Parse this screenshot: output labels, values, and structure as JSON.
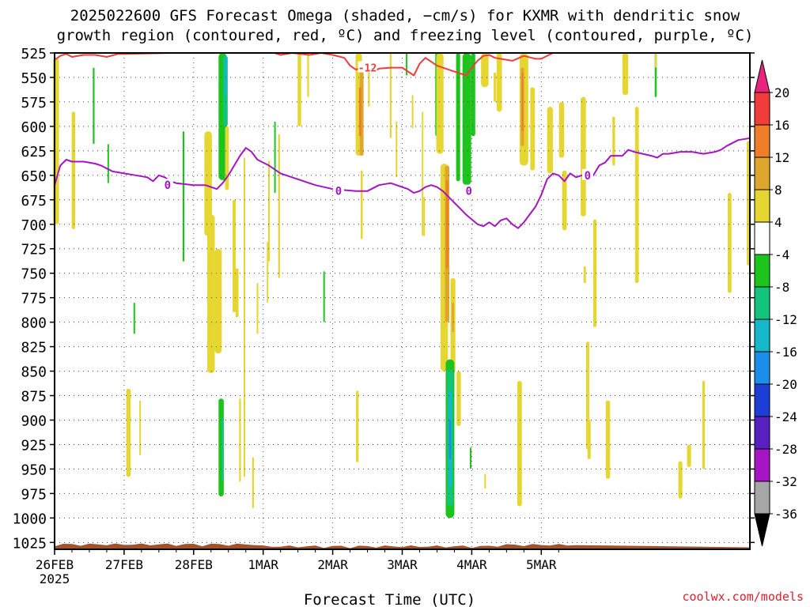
{
  "title": {
    "line1": "2025022600 GFS Forecast Omega (shaded, −cm/s) for KXMR with dendritic snow",
    "line2": "growth region (contoured, red, ºC) and freezing level (contoured, purple, ºC)"
  },
  "credit": "coolwx.com/models",
  "chart_data": {
    "type": "heatmap",
    "xlabel": "Forecast Time (UTC)",
    "ylabel": "",
    "x_ticks": [
      "26FEB",
      "27FEB",
      "28FEB",
      "1MAR",
      "2MAR",
      "3MAR",
      "4MAR",
      "5MAR"
    ],
    "x_sublabel": "2025",
    "xlim_hours": [
      0,
      180
    ],
    "y_ticks": [
      525,
      550,
      575,
      600,
      625,
      650,
      675,
      700,
      725,
      750,
      775,
      800,
      825,
      850,
      875,
      900,
      925,
      950,
      975,
      1000,
      1025
    ],
    "ylim_hPa": [
      525,
      1032
    ],
    "grid": true,
    "colorbar": {
      "labels": [
        20,
        16,
        12,
        8,
        4,
        -4,
        -8,
        -12,
        -16,
        -20,
        -24,
        -28,
        -32,
        -36
      ],
      "colors": [
        "#e8247c",
        "#f23c3c",
        "#ef7e2a",
        "#dfa62e",
        "#e6d631",
        "#ffffff",
        "#1ec41e",
        "#13c47e",
        "#14b8c8",
        "#1a8ee8",
        "#1c3ed6",
        "#5a1fc0",
        "#a614c4",
        "#a6a6a6",
        "#000000"
      ]
    },
    "colors": {
      "yellow": "#e6d631",
      "gold": "#dfa62e",
      "orange": "#ef7e2a",
      "green": "#1ec41e",
      "teal": "#13c47e",
      "cyan": "#14b8c8",
      "blue": "#1a8ee8",
      "freezing": "#a614c4",
      "dgz": "#f23c3c",
      "terrain": "#a0522d"
    },
    "freezing_level": {
      "label": "0",
      "points": [
        [
          0,
          660
        ],
        [
          2,
          640
        ],
        [
          4,
          634
        ],
        [
          6,
          636
        ],
        [
          10,
          636
        ],
        [
          14,
          638
        ],
        [
          16,
          640
        ],
        [
          20,
          646
        ],
        [
          24,
          648
        ],
        [
          28,
          650
        ],
        [
          32,
          652
        ],
        [
          34,
          656
        ],
        [
          36,
          650
        ],
        [
          38,
          652
        ],
        [
          40,
          656
        ],
        [
          42,
          658
        ],
        [
          48,
          660
        ],
        [
          52,
          660
        ],
        [
          54,
          662
        ],
        [
          56,
          664
        ],
        [
          58,
          658
        ],
        [
          60,
          650
        ],
        [
          62,
          640
        ],
        [
          64,
          630
        ],
        [
          66,
          622
        ],
        [
          68,
          626
        ],
        [
          70,
          634
        ],
        [
          74,
          640
        ],
        [
          78,
          648
        ],
        [
          84,
          654
        ],
        [
          90,
          660
        ],
        [
          96,
          664
        ],
        [
          104,
          666
        ],
        [
          108,
          666
        ],
        [
          112,
          660
        ],
        [
          116,
          658
        ],
        [
          120,
          662
        ],
        [
          122,
          664
        ],
        [
          124,
          668
        ],
        [
          126,
          666
        ],
        [
          128,
          662
        ],
        [
          130,
          660
        ],
        [
          132,
          662
        ],
        [
          134,
          666
        ],
        [
          136,
          672
        ],
        [
          138,
          678
        ],
        [
          140,
          684
        ],
        [
          142,
          690
        ],
        [
          144,
          695
        ],
        [
          146,
          700
        ],
        [
          148,
          702
        ],
        [
          150,
          698
        ],
        [
          152,
          702
        ],
        [
          154,
          696
        ],
        [
          156,
          694
        ],
        [
          158,
          700
        ],
        [
          160,
          704
        ],
        [
          162,
          698
        ],
        [
          164,
          690
        ],
        [
          166,
          682
        ],
        [
          168,
          670
        ],
        [
          170,
          654
        ],
        [
          172,
          648
        ],
        [
          174,
          650
        ],
        [
          176,
          656
        ],
        [
          178,
          648
        ],
        [
          180,
          652
        ],
        [
          182,
          650
        ],
        [
          184,
          654
        ],
        [
          186,
          650
        ],
        [
          188,
          640
        ],
        [
          190,
          637
        ],
        [
          192,
          630
        ],
        [
          196,
          630
        ],
        [
          198,
          624
        ],
        [
          200,
          626
        ],
        [
          206,
          630
        ],
        [
          208,
          632
        ],
        [
          210,
          628
        ],
        [
          212,
          628
        ],
        [
          216,
          626
        ],
        [
          220,
          626
        ],
        [
          224,
          628
        ],
        [
          228,
          626
        ],
        [
          230,
          624
        ],
        [
          232,
          620
        ],
        [
          236,
          614
        ],
        [
          240,
          612
        ]
      ]
    },
    "dgz_contour": {
      "label": "-12",
      "points": [
        [
          0,
          532
        ],
        [
          2,
          528
        ],
        [
          4,
          526
        ],
        [
          6,
          529
        ],
        [
          10,
          527
        ],
        [
          14,
          527
        ],
        [
          18,
          529
        ],
        [
          22,
          526
        ],
        [
          24,
          526
        ],
        [
          40,
          525
        ],
        [
          76,
          525
        ],
        [
          78,
          527
        ],
        [
          82,
          525
        ],
        [
          88,
          527
        ],
        [
          92,
          525
        ],
        [
          96,
          527
        ],
        [
          100,
          530
        ],
        [
          102,
          538
        ],
        [
          104,
          542
        ],
        [
          106,
          540
        ],
        [
          110,
          544
        ],
        [
          112,
          541
        ],
        [
          116,
          540
        ],
        [
          120,
          540
        ],
        [
          124,
          548
        ],
        [
          126,
          536
        ],
        [
          128,
          530
        ],
        [
          130,
          534
        ],
        [
          132,
          538
        ],
        [
          136,
          542
        ],
        [
          140,
          546
        ],
        [
          142,
          548
        ],
        [
          144,
          540
        ],
        [
          146,
          533
        ],
        [
          148,
          528
        ],
        [
          150,
          527
        ],
        [
          152,
          530
        ],
        [
          158,
          533
        ],
        [
          162,
          528
        ],
        [
          166,
          531
        ],
        [
          168,
          531
        ],
        [
          172,
          525
        ]
      ]
    },
    "blobs": [
      {
        "t": 0.5,
        "p0": 530,
        "p1": 700,
        "w": 2,
        "c": "yellow"
      },
      {
        "t": 6.5,
        "p0": 585,
        "p1": 705,
        "w": 1.2,
        "c": "yellow"
      },
      {
        "t": 13.5,
        "p0": 540,
        "p1": 618,
        "w": 0.6,
        "c": "green"
      },
      {
        "t": 18.5,
        "p0": 618,
        "p1": 658,
        "w": 0.5,
        "c": "green"
      },
      {
        "t": 27.5,
        "p0": 780,
        "p1": 812,
        "w": 0.5,
        "c": "green"
      },
      {
        "t": 25.5,
        "p0": 868,
        "p1": 958,
        "w": 1.5,
        "c": "yellow"
      },
      {
        "t": 29.5,
        "p0": 880,
        "p1": 936,
        "w": 0.5,
        "c": "yellow"
      },
      {
        "t": 44.5,
        "p0": 605,
        "p1": 738,
        "w": 0.6,
        "c": "green"
      },
      {
        "t": 53,
        "p0": 605,
        "p1": 712,
        "w": 2.6,
        "c": "yellow"
      },
      {
        "t": 54,
        "p0": 690,
        "p1": 852,
        "w": 2.6,
        "c": "yellow"
      },
      {
        "t": 56.5,
        "p0": 725,
        "p1": 832,
        "w": 2.4,
        "c": "yellow"
      },
      {
        "t": 58,
        "p0": 525,
        "p1": 655,
        "w": 2.8,
        "c": "green"
      },
      {
        "t": 59,
        "p0": 528,
        "p1": 600,
        "w": 1.5,
        "c": "teal"
      },
      {
        "t": 59,
        "p0": 528,
        "p1": 568,
        "w": 1,
        "c": "cyan"
      },
      {
        "t": 59.5,
        "p0": 600,
        "p1": 665,
        "w": 1.3,
        "c": "yellow"
      },
      {
        "t": 62,
        "p0": 675,
        "p1": 790,
        "w": 1.1,
        "c": "yellow"
      },
      {
        "t": 63,
        "p0": 745,
        "p1": 795,
        "w": 1,
        "c": "yellow"
      },
      {
        "t": 57.5,
        "p0": 878,
        "p1": 978,
        "w": 1.8,
        "c": "green"
      },
      {
        "t": 58,
        "p0": 898,
        "p1": 962,
        "w": 0.7,
        "c": "teal"
      },
      {
        "t": 64,
        "p0": 878,
        "p1": 963,
        "w": 0.6,
        "c": "yellow"
      },
      {
        "t": 65.5,
        "p0": 632,
        "p1": 958,
        "w": 0.5,
        "c": "yellow"
      },
      {
        "t": 68.5,
        "p0": 938,
        "p1": 990,
        "w": 0.6,
        "c": "yellow"
      },
      {
        "t": 70,
        "p0": 760,
        "p1": 812,
        "w": 0.5,
        "c": "yellow"
      },
      {
        "t": 73.5,
        "p0": 718,
        "p1": 780,
        "w": 0.5,
        "c": "yellow"
      },
      {
        "t": 74,
        "p0": 635,
        "p1": 738,
        "w": 0.6,
        "c": "yellow"
      },
      {
        "t": 76,
        "p0": 595,
        "p1": 668,
        "w": 0.4,
        "c": "green"
      },
      {
        "t": 77.5,
        "p0": 608,
        "p1": 755,
        "w": 0.6,
        "c": "yellow"
      },
      {
        "t": 84.5,
        "p0": 525,
        "p1": 600,
        "w": 1.2,
        "c": "yellow"
      },
      {
        "t": 87.5,
        "p0": 525,
        "p1": 570,
        "w": 0.6,
        "c": "yellow"
      },
      {
        "t": 93,
        "p0": 748,
        "p1": 800,
        "w": 0.5,
        "c": "green"
      },
      {
        "t": 104.5,
        "p0": 870,
        "p1": 943,
        "w": 0.9,
        "c": "yellow"
      },
      {
        "t": 105,
        "p0": 525,
        "p1": 630,
        "w": 2.2,
        "c": "yellow"
      },
      {
        "t": 106,
        "p0": 540,
        "p1": 630,
        "w": 1.3,
        "c": "gold"
      },
      {
        "t": 105.5,
        "p0": 560,
        "p1": 610,
        "w": 0.8,
        "c": "orange"
      },
      {
        "t": 106,
        "p0": 645,
        "p1": 715,
        "w": 0.7,
        "c": "yellow"
      },
      {
        "t": 108.5,
        "p0": 540,
        "p1": 580,
        "w": 0.6,
        "c": "yellow"
      },
      {
        "t": 116,
        "p0": 525,
        "p1": 612,
        "w": 0.6,
        "c": "yellow"
      },
      {
        "t": 118,
        "p0": 595,
        "p1": 652,
        "w": 0.5,
        "c": "yellow"
      },
      {
        "t": 121.5,
        "p0": 525,
        "p1": 548,
        "w": 0.5,
        "c": "green"
      },
      {
        "t": 123.5,
        "p0": 568,
        "p1": 602,
        "w": 0.4,
        "c": "yellow"
      },
      {
        "t": 127,
        "p0": 585,
        "p1": 712,
        "w": 0.5,
        "c": "yellow"
      },
      {
        "t": 127.5,
        "p0": 672,
        "p1": 712,
        "w": 0.4,
        "c": "yellow"
      },
      {
        "t": 132,
        "p0": 525,
        "p1": 610,
        "w": 1.2,
        "c": "green"
      },
      {
        "t": 133,
        "p0": 525,
        "p1": 628,
        "w": 2.5,
        "c": "yellow"
      },
      {
        "t": 134.5,
        "p0": 638,
        "p1": 850,
        "w": 2.6,
        "c": "yellow"
      },
      {
        "t": 135.5,
        "p0": 640,
        "p1": 800,
        "w": 1.5,
        "c": "gold"
      },
      {
        "t": 135.5,
        "p0": 655,
        "p1": 745,
        "w": 0.8,
        "c": "orange"
      },
      {
        "t": 137.5,
        "p0": 755,
        "p1": 852,
        "w": 1.7,
        "c": "yellow"
      },
      {
        "t": 137.5,
        "p0": 780,
        "p1": 810,
        "w": 0.7,
        "c": "gold"
      },
      {
        "t": 136.5,
        "p0": 838,
        "p1": 1000,
        "w": 3,
        "c": "green"
      },
      {
        "t": 136.5,
        "p0": 848,
        "p1": 988,
        "w": 2,
        "c": "teal"
      },
      {
        "t": 136.5,
        "p0": 870,
        "p1": 968,
        "w": 1.2,
        "c": "cyan"
      },
      {
        "t": 136.5,
        "p0": 900,
        "p1": 940,
        "w": 0.7,
        "c": "blue"
      },
      {
        "t": 139.5,
        "p0": 850,
        "p1": 906,
        "w": 1.5,
        "c": "yellow"
      },
      {
        "t": 139.3,
        "p0": 525,
        "p1": 656,
        "w": 1.4,
        "c": "green"
      },
      {
        "t": 142.3,
        "p0": 525,
        "p1": 660,
        "w": 3,
        "c": "green"
      },
      {
        "t": 144.5,
        "p0": 525,
        "p1": 610,
        "w": 1.4,
        "c": "green"
      },
      {
        "t": 143.5,
        "p0": 928,
        "p1": 950,
        "w": 0.3,
        "c": "green"
      },
      {
        "t": 148.5,
        "p0": 525,
        "p1": 560,
        "w": 2.6,
        "c": "yellow"
      },
      {
        "t": 148.5,
        "p0": 955,
        "p1": 970,
        "w": 0.3,
        "c": "yellow"
      },
      {
        "t": 153.5,
        "p0": 525,
        "p1": 585,
        "w": 1.8,
        "c": "yellow"
      },
      {
        "t": 152,
        "p0": 545,
        "p1": 575,
        "w": 0.9,
        "c": "yellow"
      },
      {
        "t": 160.5,
        "p0": 860,
        "p1": 988,
        "w": 1.6,
        "c": "yellow"
      },
      {
        "t": 162,
        "p0": 525,
        "p1": 640,
        "w": 3,
        "c": "yellow"
      },
      {
        "t": 161.5,
        "p0": 540,
        "p1": 620,
        "w": 1.1,
        "c": "gold"
      },
      {
        "t": 161.5,
        "p0": 545,
        "p1": 605,
        "w": 0.6,
        "c": "orange"
      },
      {
        "t": 165,
        "p0": 560,
        "p1": 645,
        "w": 1.6,
        "c": "yellow"
      },
      {
        "t": 171,
        "p0": 580,
        "p1": 648,
        "w": 2,
        "c": "yellow"
      },
      {
        "t": 175,
        "p0": 575,
        "p1": 632,
        "w": 1.8,
        "c": "yellow"
      },
      {
        "t": 176,
        "p0": 645,
        "p1": 706,
        "w": 1.6,
        "c": "yellow"
      },
      {
        "t": 182.5,
        "p0": 570,
        "p1": 692,
        "w": 1.8,
        "c": "yellow"
      },
      {
        "t": 184,
        "p0": 820,
        "p1": 930,
        "w": 1.1,
        "c": "yellow"
      },
      {
        "t": 184.5,
        "p0": 900,
        "p1": 940,
        "w": 1.1,
        "c": "yellow"
      },
      {
        "t": 186.5,
        "p0": 695,
        "p1": 805,
        "w": 1.2,
        "c": "yellow"
      },
      {
        "t": 183,
        "p0": 743,
        "p1": 760,
        "w": 0.8,
        "c": "yellow"
      },
      {
        "t": 191,
        "p0": 880,
        "p1": 960,
        "w": 1.5,
        "c": "yellow"
      },
      {
        "t": 193,
        "p0": 590,
        "p1": 640,
        "w": 0.9,
        "c": "yellow"
      },
      {
        "t": 197,
        "p0": 525,
        "p1": 568,
        "w": 2,
        "c": "yellow"
      },
      {
        "t": 201,
        "p0": 580,
        "p1": 760,
        "w": 1.3,
        "c": "yellow"
      },
      {
        "t": 207.5,
        "p0": 525,
        "p1": 570,
        "w": 0.7,
        "c": "green"
      },
      {
        "t": 207.5,
        "p0": 525,
        "p1": 540,
        "w": 0.6,
        "c": "yellow"
      },
      {
        "t": 216,
        "p0": 942,
        "p1": 980,
        "w": 1.4,
        "c": "yellow"
      },
      {
        "t": 219,
        "p0": 925,
        "p1": 948,
        "w": 1.4,
        "c": "yellow"
      },
      {
        "t": 224,
        "p0": 860,
        "p1": 950,
        "w": 0.9,
        "c": "yellow"
      },
      {
        "t": 233,
        "p0": 668,
        "p1": 770,
        "w": 1.3,
        "c": "yellow"
      },
      {
        "t": 239.5,
        "p0": 615,
        "p1": 742,
        "w": 1.2,
        "c": "yellow"
      }
    ]
  }
}
